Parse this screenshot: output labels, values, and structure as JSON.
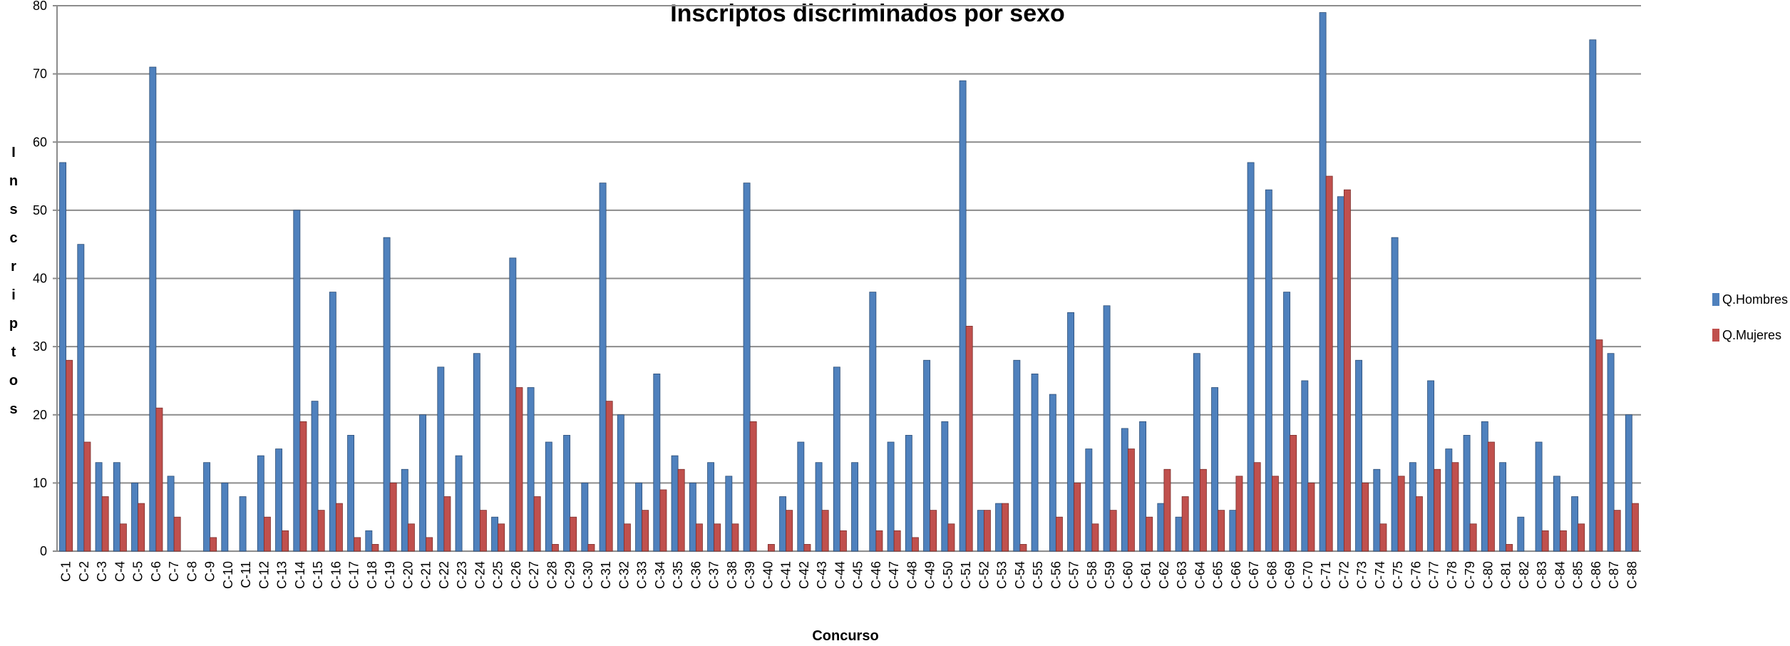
{
  "chart_data": {
    "type": "bar",
    "title": "Inscriptos discriminados por sexo",
    "x_label": "Concurso",
    "y_label": "Inscriptos",
    "categories": [
      "C-1",
      "C-2",
      "C-3",
      "C-4",
      "C-5",
      "C-6",
      "C-7",
      "C-8",
      "C-9",
      "C-10",
      "C-11",
      "C-12",
      "C-13",
      "C-14",
      "C-15",
      "C-16",
      "C-17",
      "C-18",
      "C-19",
      "C-20",
      "C-21",
      "C-22",
      "C-23",
      "C-24",
      "C-25",
      "C-26",
      "C-27",
      "C-28",
      "C-29",
      "C-30",
      "C-31",
      "C-32",
      "C-33",
      "C-34",
      "C-35",
      "C-36",
      "C-37",
      "C-38",
      "C-39",
      "C-40",
      "C-41",
      "C-42",
      "C-43",
      "C-44",
      "C-45",
      "C-46",
      "C-47",
      "C-48",
      "C-49",
      "C-50",
      "C-51",
      "C-52",
      "C-53",
      "C-54",
      "C-55",
      "C-56",
      "C-57",
      "C-58",
      "C-59",
      "C-60",
      "C-61",
      "C-62",
      "C-63",
      "C-64",
      "C-65",
      "C-66",
      "C-67",
      "C-68",
      "C-69",
      "C-70",
      "C-71",
      "C-72",
      "C-73",
      "C-74",
      "C-75",
      "C-76",
      "C-77",
      "C-78",
      "C-79",
      "C-80",
      "C-81",
      "C-82",
      "C-83",
      "C-84",
      "C-85",
      "C-86",
      "C-87",
      "C-88"
    ],
    "series": [
      {
        "name": "Q.Hombres",
        "color": "#4f81bd",
        "values": [
          57,
          45,
          13,
          13,
          10,
          71,
          11,
          0,
          13,
          10,
          8,
          14,
          15,
          50,
          22,
          38,
          17,
          3,
          46,
          12,
          20,
          27,
          14,
          29,
          5,
          43,
          24,
          16,
          17,
          10,
          54,
          20,
          10,
          26,
          14,
          10,
          13,
          11,
          54,
          0,
          8,
          16,
          13,
          27,
          13,
          38,
          16,
          17,
          28,
          19,
          69,
          6,
          7,
          28,
          26,
          23,
          35,
          15,
          36,
          18,
          19,
          7,
          5,
          29,
          24,
          6,
          57,
          53,
          38,
          25,
          79,
          52,
          28,
          12,
          46,
          13,
          25,
          15,
          17,
          19,
          13,
          5,
          16,
          11,
          8,
          75,
          29,
          20
        ]
      },
      {
        "name": "Q.Mujeres",
        "color": "#c0504d",
        "values": [
          28,
          16,
          8,
          4,
          7,
          21,
          5,
          0,
          2,
          0,
          0,
          5,
          3,
          19,
          6,
          7,
          2,
          1,
          10,
          4,
          2,
          8,
          0,
          6,
          4,
          24,
          8,
          1,
          5,
          1,
          22,
          4,
          6,
          9,
          12,
          4,
          4,
          4,
          19,
          1,
          6,
          1,
          6,
          3,
          0,
          3,
          3,
          2,
          6,
          4,
          33,
          6,
          7,
          1,
          0,
          5,
          10,
          4,
          6,
          15,
          5,
          12,
          8,
          12,
          6,
          11,
          13,
          11,
          17,
          10,
          55,
          53,
          10,
          4,
          11,
          8,
          12,
          13,
          4,
          16,
          1,
          0,
          3,
          3,
          4,
          31,
          6,
          7
        ]
      }
    ],
    "ylim": [
      0,
      80
    ],
    "yticks": [
      0,
      10,
      20,
      30,
      40,
      50,
      60,
      70,
      80
    ],
    "grid": true,
    "legend": "right"
  }
}
